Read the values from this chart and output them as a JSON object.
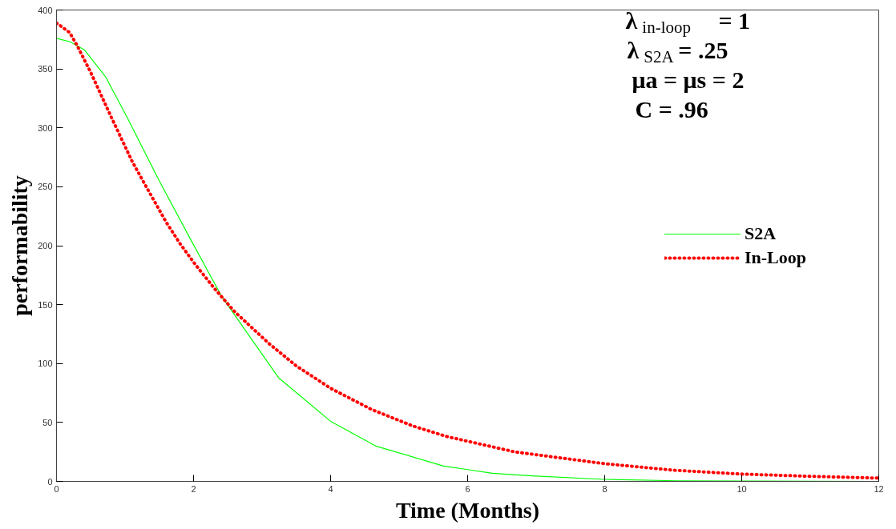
{
  "chart_data": {
    "type": "line",
    "xlabel": "Time (Months)",
    "ylabel": "performability",
    "xlim": [
      0,
      12
    ],
    "ylim": [
      0,
      400
    ],
    "xticks": [
      0,
      2,
      4,
      6,
      8,
      10,
      12
    ],
    "yticks": [
      0,
      50,
      100,
      150,
      200,
      250,
      300,
      350,
      400
    ],
    "grid": false,
    "legend": "right",
    "series": [
      {
        "name": "S2A",
        "color": "#00ff00",
        "line_style": "solid",
        "x": [
          0,
          0.2,
          0.41,
          0.72,
          1.03,
          1.5,
          1.96,
          2.41,
          3.24,
          4,
          4.66,
          5.65,
          6,
          6.36,
          6.94,
          8,
          9.05,
          12
        ],
        "values": [
          376,
          373,
          366,
          343,
          309,
          255,
          205,
          157,
          88,
          51,
          30,
          13,
          10,
          6.9,
          4.7,
          1.7,
          0.5,
          0
        ]
      },
      {
        "name": "In-Loop",
        "color": "#ff0000",
        "line_style": "dotted",
        "x": [
          0,
          0.19,
          0.29,
          0.5,
          0.8,
          1.1,
          1.3,
          1.6,
          1.8,
          2,
          2.3,
          2.6,
          3.1,
          3.5,
          4,
          4.6,
          5.2,
          5.7,
          6.69,
          8,
          9,
          10,
          11,
          12
        ],
        "values": [
          389,
          381,
          371,
          347,
          309,
          272,
          251,
          220,
          202,
          186,
          164,
          144,
          117,
          98,
          79,
          61,
          47,
          38,
          25,
          15,
          9.5,
          6.2,
          4.3,
          2.8
        ]
      }
    ],
    "annotations": [
      "λ$_{in-loop}$ = 1",
      "λ$_{S2A}$ = .25",
      "μa = μs = 2",
      "C = .96"
    ]
  }
}
